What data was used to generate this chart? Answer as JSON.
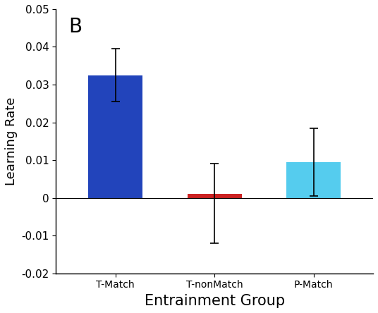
{
  "categories": [
    "T-Match",
    "T-nonMatch",
    "P-Match"
  ],
  "values": [
    0.0325,
    0.001,
    0.0095
  ],
  "errors_upper": [
    0.007,
    0.008,
    0.009
  ],
  "errors_lower": [
    0.007,
    0.013,
    0.009
  ],
  "bar_colors": [
    "#2244bb",
    "#cc2222",
    "#55ccee"
  ],
  "bar_width": 0.55,
  "ylim": [
    -0.02,
    0.05
  ],
  "yticks": [
    -0.02,
    -0.01,
    0.0,
    0.01,
    0.02,
    0.03,
    0.04,
    0.05
  ],
  "ytick_labels": [
    "-0.02",
    "-0.01",
    "0",
    "0.01",
    "0.02",
    "0.03",
    "0.04",
    "0.05"
  ],
  "xlabel": "Entrainment Group",
  "ylabel": "Learning Rate",
  "panel_label": "B",
  "panel_label_fontsize": 20,
  "xlabel_fontsize": 15,
  "ylabel_fontsize": 13,
  "tick_fontsize": 11,
  "error_capsize": 4,
  "error_linewidth": 1.2,
  "background_color": "#ffffff"
}
